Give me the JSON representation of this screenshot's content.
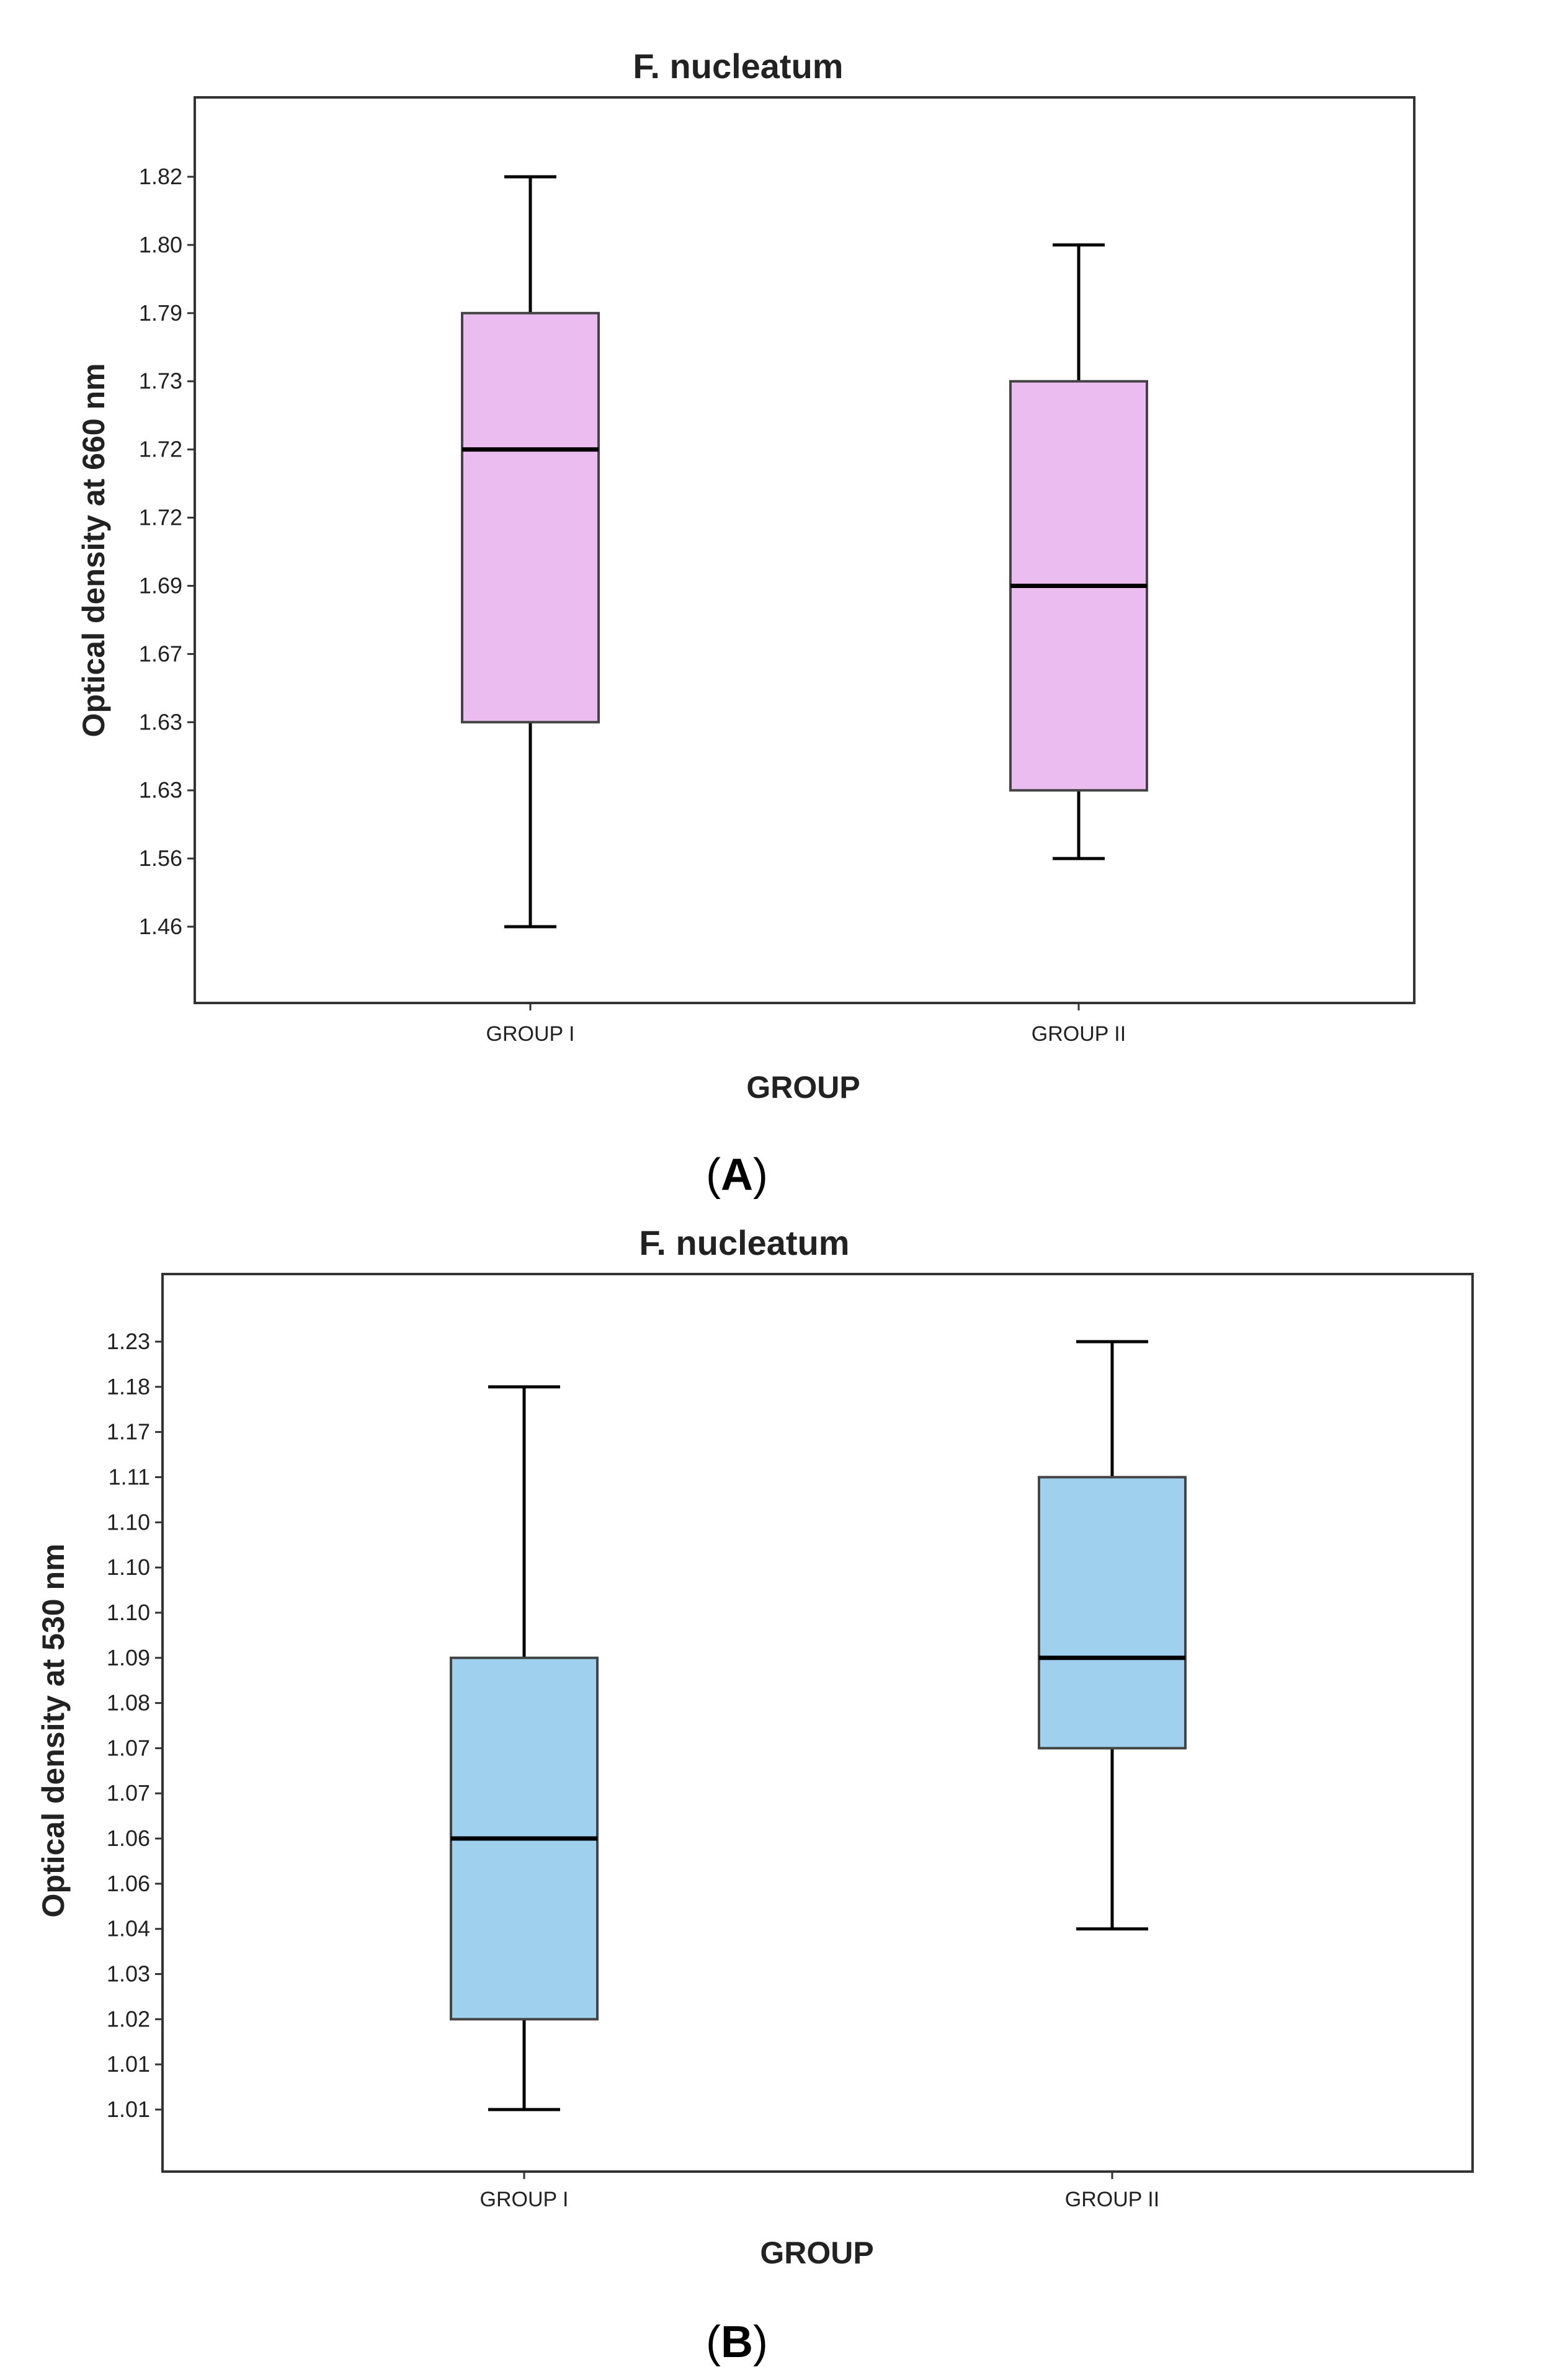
{
  "figure": {
    "panel_a_letter": "A",
    "panel_b_letter": "B",
    "paren_open": "(",
    "paren_close": ")"
  },
  "chart_data": [
    {
      "type": "boxplot",
      "title": "F. nucleatum",
      "xlabel": "GROUP",
      "ylabel": "Optical density at 660 nm",
      "categories": [
        "GROUP I",
        "GROUP II"
      ],
      "y_tick_labels": [
        "1.46",
        "1.56",
        "1.63",
        "1.63",
        "1.67",
        "1.69",
        "1.72",
        "1.72",
        "1.73",
        "1.79",
        "1.80",
        "1.82"
      ],
      "boxes": [
        {
          "category": "GROUP I",
          "min": "1.46",
          "q1": "1.63",
          "median": "1.72",
          "q3": "1.79",
          "max": "1.82",
          "min_rank": 0,
          "q1_rank": 3,
          "median_rank": 7,
          "q3_rank": 9,
          "max_rank": 11
        },
        {
          "category": "GROUP II",
          "min": "1.56",
          "q1": "1.63",
          "median": "1.69",
          "q3": "1.73",
          "max": "1.80",
          "min_rank": 1,
          "q1_rank": 2,
          "median_rank": 5,
          "q3_rank": 8,
          "max_rank": 10
        }
      ],
      "box_color": "#EBBCF0",
      "line_color": "#000000"
    },
    {
      "type": "boxplot",
      "title": "F. nucleatum",
      "xlabel": "GROUP",
      "ylabel": "Optical density at 530 nm",
      "categories": [
        "GROUP I",
        "GROUP II"
      ],
      "y_tick_labels": [
        "1.01",
        "1.01",
        "1.02",
        "1.03",
        "1.04",
        "1.06",
        "1.06",
        "1.07",
        "1.07",
        "1.08",
        "1.09",
        "1.10",
        "1.10",
        "1.10",
        "1.11",
        "1.17",
        "1.18",
        "1.23"
      ],
      "boxes": [
        {
          "category": "GROUP I",
          "min": "1.01",
          "q1": "1.02",
          "median": "1.06",
          "q3": "1.09",
          "max": "1.18",
          "min_rank": 0,
          "q1_rank": 2,
          "median_rank": 6,
          "q3_rank": 10,
          "max_rank": 16
        },
        {
          "category": "GROUP II",
          "min": "1.04",
          "q1": "1.07",
          "median": "1.09",
          "q3": "1.11",
          "max": "1.23",
          "min_rank": 4,
          "q1_rank": 8,
          "median_rank": 10,
          "q3_rank": 14,
          "max_rank": 17
        }
      ],
      "box_color": "#9FD1EF",
      "line_color": "#000000"
    }
  ]
}
